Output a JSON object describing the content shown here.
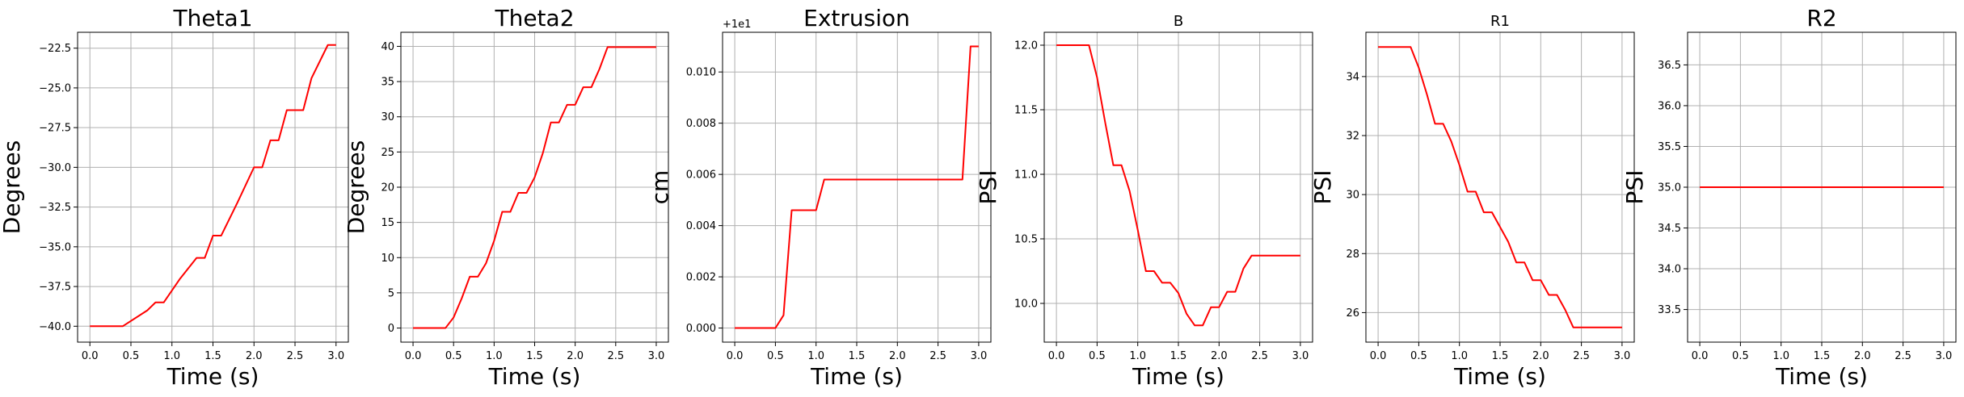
{
  "chart_data": [
    {
      "type": "line",
      "title": "Theta1",
      "xlabel": "Time (s)",
      "ylabel": "Degrees",
      "xlim": [
        -0.15,
        3.15
      ],
      "ylim": [
        -41.0,
        -21.5
      ],
      "xticks": [
        0.0,
        0.5,
        1.0,
        1.5,
        2.0,
        2.5,
        3.0
      ],
      "xtick_labels": [
        "0.0",
        "0.5",
        "1.0",
        "1.5",
        "2.0",
        "2.5",
        "3.0"
      ],
      "yticks": [
        -40.0,
        -37.5,
        -35.0,
        -32.5,
        -30.0,
        -27.5,
        -25.0,
        -22.5
      ],
      "ytick_labels": [
        "−40.0",
        "−37.5",
        "−35.0",
        "−32.5",
        "−30.0",
        "−27.5",
        "−25.0",
        "−22.5"
      ],
      "grid": true,
      "color": "#ff0000",
      "x": [
        0.0,
        0.4,
        0.7,
        0.8,
        0.9,
        1.1,
        1.3,
        1.4,
        1.5,
        1.6,
        1.8,
        2.0,
        2.1,
        2.2,
        2.3,
        2.4,
        2.5,
        2.6,
        2.7,
        2.9,
        3.0
      ],
      "y": [
        -40.0,
        -40.0,
        -39.0,
        -38.5,
        -38.5,
        -37.0,
        -35.7,
        -35.7,
        -34.3,
        -34.3,
        -32.2,
        -30.0,
        -30.0,
        -28.3,
        -28.3,
        -26.4,
        -26.4,
        -26.4,
        -24.4,
        -22.3,
        -22.3
      ]
    },
    {
      "type": "line",
      "title": "Theta2",
      "xlabel": "Time (s)",
      "ylabel": "Degrees",
      "xlim": [
        -0.15,
        3.15
      ],
      "ylim": [
        -2.0,
        42.0
      ],
      "xticks": [
        0.0,
        0.5,
        1.0,
        1.5,
        2.0,
        2.5,
        3.0
      ],
      "xtick_labels": [
        "0.0",
        "0.5",
        "1.0",
        "1.5",
        "2.0",
        "2.5",
        "3.0"
      ],
      "yticks": [
        0,
        5,
        10,
        15,
        20,
        25,
        30,
        35,
        40
      ],
      "ytick_labels": [
        "0",
        "5",
        "10",
        "15",
        "20",
        "25",
        "30",
        "35",
        "40"
      ],
      "grid": true,
      "color": "#ff0000",
      "x": [
        0.0,
        0.4,
        0.5,
        0.6,
        0.7,
        0.8,
        0.9,
        1.0,
        1.1,
        1.2,
        1.3,
        1.4,
        1.5,
        1.6,
        1.7,
        1.8,
        1.9,
        2.0,
        2.1,
        2.2,
        2.3,
        2.4,
        2.5,
        2.6,
        2.7,
        2.8,
        2.9,
        3.0
      ],
      "y": [
        0.0,
        0.0,
        1.5,
        4.2,
        7.3,
        7.3,
        9.2,
        12.4,
        16.5,
        16.5,
        19.2,
        19.2,
        21.4,
        24.8,
        29.2,
        29.2,
        31.7,
        31.7,
        34.2,
        34.2,
        36.8,
        39.9,
        39.9,
        39.9,
        39.9,
        39.9,
        39.9,
        39.9
      ]
    },
    {
      "type": "line",
      "title": "Extrusion",
      "offset_text": "+1e1",
      "xlabel": "Time (s)",
      "ylabel": "cm",
      "xlim": [
        -0.15,
        3.15
      ],
      "ylim": [
        -0.00055,
        0.01155
      ],
      "xticks": [
        0.0,
        0.5,
        1.0,
        1.5,
        2.0,
        2.5,
        3.0
      ],
      "xtick_labels": [
        "0.0",
        "0.5",
        "1.0",
        "1.5",
        "2.0",
        "2.5",
        "3.0"
      ],
      "yticks": [
        0.0,
        0.002,
        0.004,
        0.006,
        0.008,
        0.01
      ],
      "ytick_labels": [
        "0.000",
        "0.002",
        "0.004",
        "0.006",
        "0.008",
        "0.010"
      ],
      "grid": true,
      "color": "#ff0000",
      "x": [
        0.0,
        0.5,
        0.6,
        0.7,
        0.8,
        0.9,
        1.0,
        1.1,
        1.4,
        2.0,
        2.5,
        2.8,
        2.9,
        3.0
      ],
      "y": [
        0.0,
        0.0,
        0.0005,
        0.0046,
        0.0046,
        0.0046,
        0.0046,
        0.0058,
        0.0058,
        0.0058,
        0.0058,
        0.0058,
        0.011,
        0.011
      ]
    },
    {
      "type": "line",
      "title": "B",
      "xlabel": "Time (s)",
      "ylabel": "PSI",
      "xlim": [
        -0.15,
        3.15
      ],
      "ylim": [
        9.7,
        12.1
      ],
      "xticks": [
        0.0,
        0.5,
        1.0,
        1.5,
        2.0,
        2.5,
        3.0
      ],
      "xtick_labels": [
        "0.0",
        "0.5",
        "1.0",
        "1.5",
        "2.0",
        "2.5",
        "3.0"
      ],
      "yticks": [
        10.0,
        10.5,
        11.0,
        11.5,
        12.0
      ],
      "ytick_labels": [
        "10.0",
        "10.5",
        "11.0",
        "11.5",
        "12.0"
      ],
      "grid": true,
      "color": "#ff0000",
      "x": [
        0.0,
        0.4,
        0.5,
        0.6,
        0.7,
        0.8,
        0.9,
        1.0,
        1.1,
        1.2,
        1.3,
        1.4,
        1.5,
        1.6,
        1.7,
        1.8,
        1.9,
        2.0,
        2.1,
        2.2,
        2.3,
        2.4,
        2.5,
        2.6,
        2.7,
        2.8,
        2.9,
        3.0
      ],
      "y": [
        12.0,
        12.0,
        11.75,
        11.4,
        11.07,
        11.07,
        10.87,
        10.57,
        10.25,
        10.25,
        10.16,
        10.16,
        10.08,
        9.92,
        9.83,
        9.83,
        9.97,
        9.97,
        10.09,
        10.09,
        10.27,
        10.37,
        10.37,
        10.37,
        10.37,
        10.37,
        10.37,
        10.37
      ]
    },
    {
      "type": "line",
      "title": "R1",
      "xlabel": "Time (s)",
      "ylabel": "PSI",
      "xlim": [
        -0.15,
        3.15
      ],
      "ylim": [
        25.0,
        35.5
      ],
      "xticks": [
        0.0,
        0.5,
        1.0,
        1.5,
        2.0,
        2.5,
        3.0
      ],
      "xtick_labels": [
        "0.0",
        "0.5",
        "1.0",
        "1.5",
        "2.0",
        "2.5",
        "3.0"
      ],
      "yticks": [
        26,
        28,
        30,
        32,
        34
      ],
      "ytick_labels": [
        "26",
        "28",
        "30",
        "32",
        "34"
      ],
      "grid": true,
      "color": "#ff0000",
      "x": [
        0.0,
        0.4,
        0.5,
        0.6,
        0.7,
        0.8,
        0.9,
        1.0,
        1.1,
        1.2,
        1.3,
        1.4,
        1.5,
        1.6,
        1.7,
        1.8,
        1.9,
        2.0,
        2.1,
        2.2,
        2.3,
        2.4,
        2.5,
        2.6,
        2.7,
        2.8,
        2.9,
        3.0
      ],
      "y": [
        35.0,
        35.0,
        34.3,
        33.4,
        32.4,
        32.4,
        31.8,
        31.0,
        30.1,
        30.1,
        29.4,
        29.4,
        28.9,
        28.4,
        27.7,
        27.7,
        27.1,
        27.1,
        26.6,
        26.6,
        26.1,
        25.5,
        25.5,
        25.5,
        25.5,
        25.5,
        25.5,
        25.5
      ]
    },
    {
      "type": "line",
      "title": "R2",
      "xlabel": "Time (s)",
      "ylabel": "PSI",
      "xlim": [
        -0.15,
        3.15
      ],
      "ylim": [
        33.1,
        36.9
      ],
      "xticks": [
        0.0,
        0.5,
        1.0,
        1.5,
        2.0,
        2.5,
        3.0
      ],
      "xtick_labels": [
        "0.0",
        "0.5",
        "1.0",
        "1.5",
        "2.0",
        "2.5",
        "3.0"
      ],
      "yticks": [
        33.5,
        34.0,
        34.5,
        35.0,
        35.5,
        36.0,
        36.5
      ],
      "ytick_labels": [
        "33.5",
        "34.0",
        "34.5",
        "35.0",
        "35.5",
        "36.0",
        "36.5"
      ],
      "grid": true,
      "color": "#ff0000",
      "x": [
        0.0,
        3.0
      ],
      "y": [
        35.0,
        35.0
      ]
    }
  ]
}
